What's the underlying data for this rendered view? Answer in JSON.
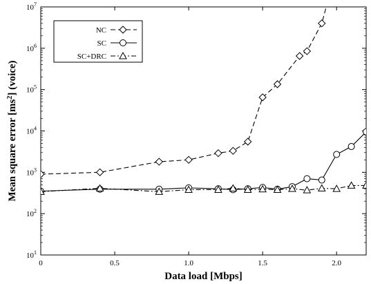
{
  "chart_data": {
    "type": "line",
    "xlabel": "Data load [Mbps]",
    "ylabel_main": "Mean square error [ms",
    "ylabel_sup": "2",
    "ylabel_tail": "] (voice)",
    "xlim": [
      0,
      2.2
    ],
    "ylim": [
      10,
      10000000
    ],
    "yscale": "log",
    "grid": false,
    "legend_position": "top-left",
    "x_ticks": [
      {
        "value": 0,
        "label": "0"
      },
      {
        "value": 0.5,
        "label": "0.5"
      },
      {
        "value": 1.0,
        "label": "1.0"
      },
      {
        "value": 1.5,
        "label": "1.5"
      },
      {
        "value": 2.0,
        "label": "2.0"
      }
    ],
    "y_ticks": [
      {
        "value": 10,
        "base": "10",
        "exp": "1"
      },
      {
        "value": 100,
        "base": "10",
        "exp": "2"
      },
      {
        "value": 1000,
        "base": "10",
        "exp": "3"
      },
      {
        "value": 10000,
        "base": "10",
        "exp": "4"
      },
      {
        "value": 100000,
        "base": "10",
        "exp": "5"
      },
      {
        "value": 1000000,
        "base": "10",
        "exp": "6"
      },
      {
        "value": 10000000,
        "base": "10",
        "exp": "7"
      }
    ],
    "series": [
      {
        "name": "NC",
        "marker": "diamond",
        "dash": "7,4",
        "x": [
          0,
          0.4,
          0.8,
          1.0,
          1.2,
          1.3,
          1.4,
          1.5,
          1.6,
          1.75,
          1.8,
          1.9,
          1.93
        ],
        "y": [
          900,
          1000,
          1800,
          2000,
          2900,
          3300,
          5500,
          65000,
          135000,
          650000,
          850000,
          4000000,
          10000000
        ],
        "markers_shown": 12
      },
      {
        "name": "SC",
        "marker": "circle",
        "dash": "",
        "x": [
          0,
          0.4,
          0.8,
          1.0,
          1.2,
          1.3,
          1.4,
          1.5,
          1.6,
          1.7,
          1.8,
          1.9,
          2.0,
          2.1,
          2.2
        ],
        "y": [
          350,
          390,
          390,
          420,
          400,
          380,
          400,
          430,
          390,
          450,
          700,
          650,
          2700,
          4200,
          9500
        ],
        "markers_shown": 15
      },
      {
        "name": "SC+DRC",
        "marker": "triangle",
        "dash": "7,3,2,3",
        "x": [
          0,
          0.4,
          0.8,
          1.0,
          1.2,
          1.3,
          1.4,
          1.5,
          1.6,
          1.7,
          1.8,
          1.9,
          2.0,
          2.1,
          2.2
        ],
        "y": [
          340,
          410,
          340,
          380,
          380,
          410,
          380,
          390,
          380,
          400,
          370,
          410,
          400,
          480,
          480
        ],
        "markers_shown": 15
      }
    ]
  }
}
